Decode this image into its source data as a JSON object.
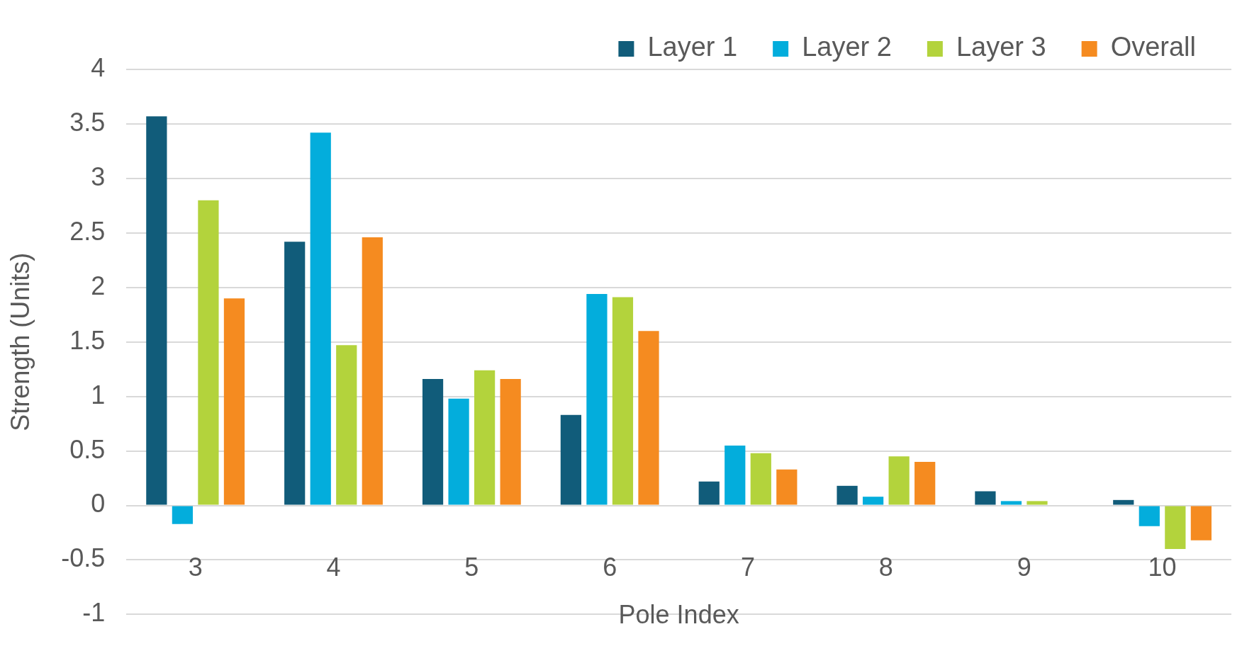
{
  "chart_data": {
    "type": "bar",
    "xlabel": "Pole Index",
    "ylabel": "Strength (Units)",
    "categories": [
      "3",
      "4",
      "5",
      "6",
      "7",
      "8",
      "9",
      "10"
    ],
    "series": [
      {
        "name": "Layer 1",
        "color": "#115c7a",
        "values": [
          3.57,
          2.42,
          1.16,
          0.83,
          0.22,
          0.18,
          0.13,
          0.05
        ]
      },
      {
        "name": "Layer 2",
        "color": "#03addc",
        "values": [
          -0.17,
          3.42,
          0.98,
          1.94,
          0.55,
          0.08,
          0.04,
          -0.19
        ]
      },
      {
        "name": "Layer 3",
        "color": "#b3d33c",
        "values": [
          2.8,
          1.47,
          1.24,
          1.91,
          0.48,
          0.45,
          0.04,
          -0.4
        ]
      },
      {
        "name": "Overall",
        "color": "#f58b20",
        "values": [
          1.9,
          2.46,
          1.16,
          1.6,
          0.33,
          0.4,
          null,
          -0.32
        ]
      }
    ],
    "ylim": [
      -1,
      4
    ],
    "yticks": [
      -1,
      -0.5,
      0,
      0.5,
      1,
      1.5,
      2,
      2.5,
      3,
      3.5,
      4
    ],
    "grid": "y",
    "legend": "top right"
  }
}
